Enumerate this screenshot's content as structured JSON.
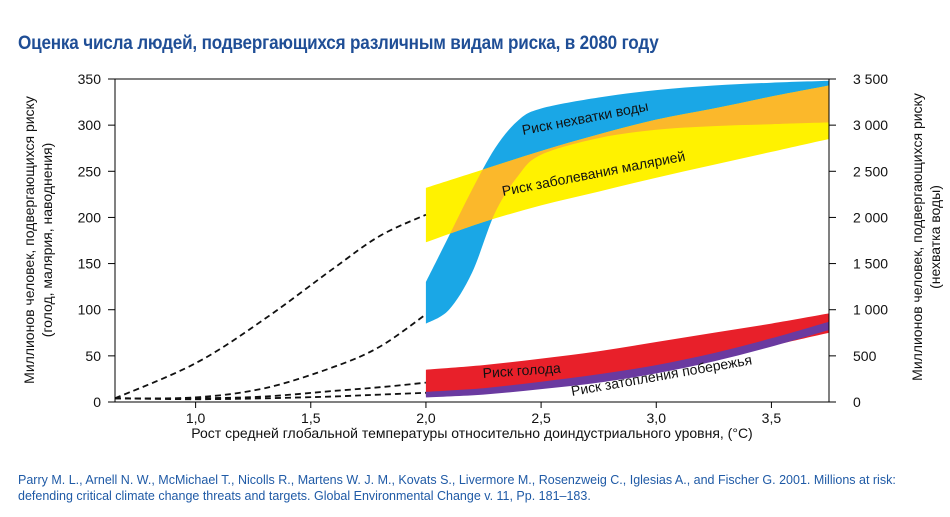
{
  "title": "Оценка числа людей, подвергающихся различным видам риска, в 2080 году",
  "source": "Parry M. L., Arnell N. W., McMichael T., Nicolls R., Martens W. J. M., Kovats S., Livermore M., Rosenzweig C., Iglesias A., and Fischer G. 2001. Millions at risk: defending critical climate change threats and targets. Global Environmental Change v. 11, Pp. 181–183.",
  "colors": {
    "water": "#1aa7e6",
    "malaria": "#fff200",
    "overlap": "#fbb82b",
    "hunger": "#e8202a",
    "coastal": "#6a3aa0",
    "title": "#1f4e96"
  },
  "chart_data": {
    "type": "area",
    "xlabel": "Рост средней глобальной температуры относительно доиндустриального уровня, (°C)",
    "ylabel": [
      "Миллионов человек, подвергающихся риску",
      "(голод, малярия, наводнения)"
    ],
    "ylabel_right": [
      "Миллионов человек, подвергающихся риску",
      "(нехватка воды)"
    ],
    "xlim": [
      0.65,
      3.75
    ],
    "ylim": [
      0,
      350
    ],
    "ylim_right": [
      0,
      3500
    ],
    "x_ticks": [
      "1,0",
      "1,5",
      "2,0",
      "2,5",
      "3,0",
      "3,5"
    ],
    "x_tick_values": [
      1.0,
      1.5,
      2.0,
      2.5,
      3.0,
      3.5
    ],
    "y_ticks": [
      "0",
      "50",
      "100",
      "150",
      "200",
      "250",
      "300",
      "350"
    ],
    "y_tick_values": [
      0,
      50,
      100,
      150,
      200,
      250,
      300,
      350
    ],
    "y_right_ticks": [
      "0",
      "500",
      "1 000",
      "1 500",
      "2 000",
      "2 500",
      "3 000",
      "3 500"
    ],
    "series": [
      {
        "name": "Риск нехватки воды",
        "color": "#1aa7e6",
        "x": [
          2.0,
          2.1,
          2.2,
          2.3,
          2.4,
          2.5,
          2.75,
          3.0,
          3.25,
          3.5,
          3.75
        ],
        "low": [
          85,
          100,
          140,
          205,
          245,
          268,
          286,
          295,
          299,
          301,
          303
        ],
        "high": [
          130,
          180,
          230,
          275,
          305,
          318,
          330,
          338,
          343,
          346,
          348
        ]
      },
      {
        "name": "Риск заболевания малярией",
        "color": "#fff200",
        "x": [
          2.0,
          2.25,
          2.5,
          2.75,
          3.0,
          3.25,
          3.5,
          3.75
        ],
        "low": [
          173,
          195,
          213,
          228,
          243,
          257,
          271,
          285
        ],
        "high": [
          232,
          252,
          272,
          290,
          306,
          318,
          331,
          343
        ]
      },
      {
        "name": "Риск голода",
        "color": "#e8202a",
        "x": [
          2.0,
          2.25,
          2.5,
          2.75,
          3.0,
          3.25,
          3.5,
          3.75
        ],
        "low": [
          7,
          10,
          16,
          24,
          35,
          48,
          61,
          75
        ],
        "high": [
          35,
          40,
          47,
          55,
          65,
          75,
          85,
          96
        ]
      },
      {
        "name": "Риск затопления побережья",
        "color": "#6a3aa0",
        "x": [
          2.0,
          2.25,
          2.5,
          2.75,
          3.0,
          3.25,
          3.5,
          3.75
        ],
        "low": [
          5,
          8,
          14,
          21,
          31,
          44,
          60,
          78
        ],
        "high": [
          11,
          15,
          22,
          30,
          40,
          53,
          69,
          87
        ]
      }
    ],
    "dashed_lines": [
      {
        "x": [
          0.65,
          1.0,
          1.3,
          1.6,
          1.8,
          2.0
        ],
        "y": [
          4,
          42,
          90,
          145,
          180,
          203
        ]
      },
      {
        "x": [
          0.65,
          1.0,
          1.3,
          1.6,
          1.8,
          2.0
        ],
        "y": [
          4,
          5,
          15,
          38,
          60,
          95
        ]
      },
      {
        "x": [
          0.65,
          1.0,
          1.3,
          1.6,
          1.8,
          2.0
        ],
        "y": [
          4,
          4,
          6,
          12,
          16,
          21
        ]
      },
      {
        "x": [
          0.65,
          1.0,
          1.3,
          1.6,
          1.8,
          2.0
        ],
        "y": [
          4,
          3,
          4,
          6,
          8,
          10
        ]
      }
    ]
  }
}
